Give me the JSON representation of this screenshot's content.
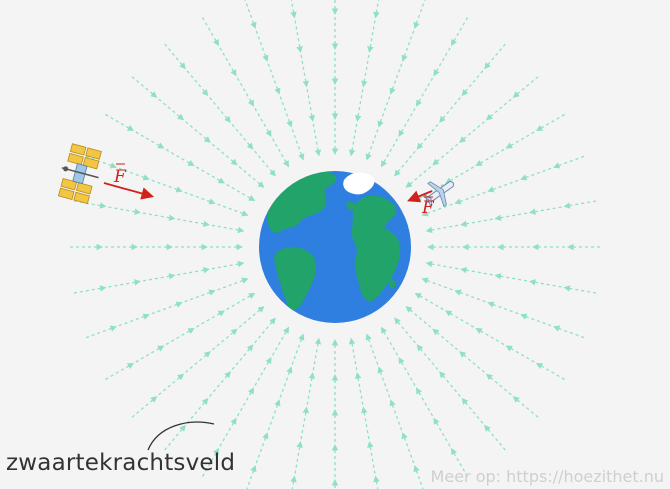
{
  "field_label": "zwaartekrachtsveld",
  "watermark": "Meer op: https://hoezithet.nu",
  "force_symbol": "F",
  "colors": {
    "background": "#f4f4f4",
    "field_lines": "#8fe0c4",
    "ocean": "#2f7fe0",
    "land": "#22a36a",
    "ice": "#ffffff",
    "force": "#d0211c",
    "satellite_panels": "#f2c542"
  },
  "icons": {
    "planet": "earth-icon",
    "satellite": "satellite-icon",
    "airplane": "airplane-icon"
  }
}
